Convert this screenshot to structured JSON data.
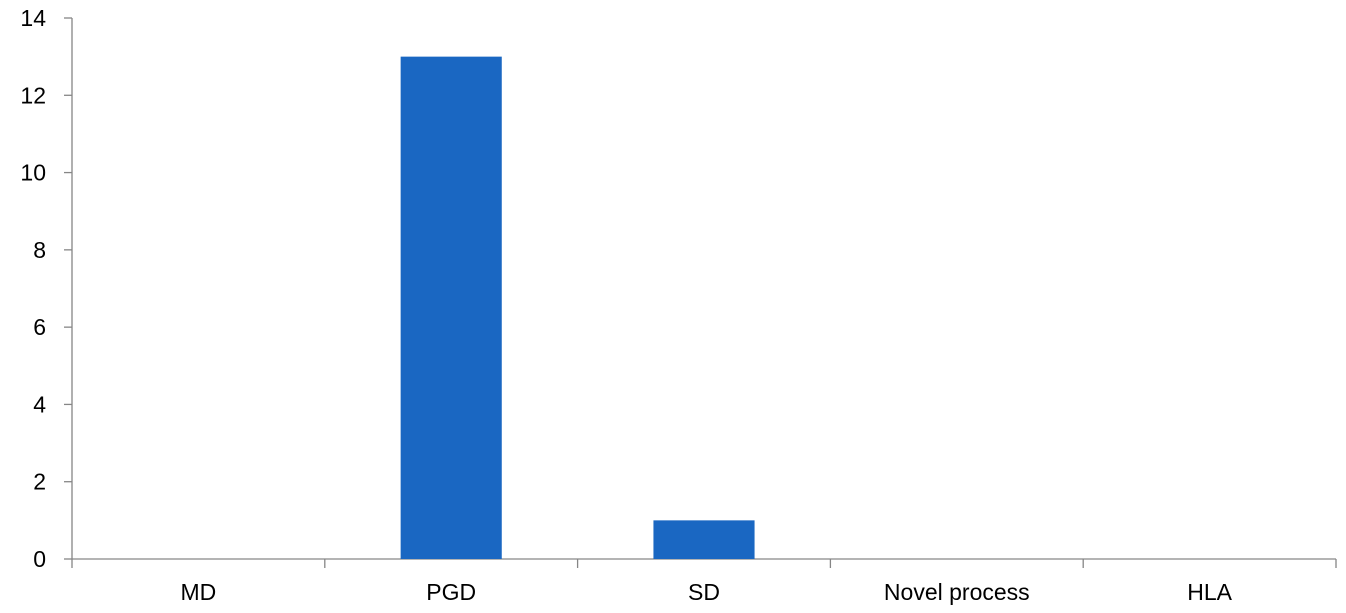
{
  "chart_data": {
    "type": "bar",
    "categories": [
      "MD",
      "PGD",
      "SD",
      "Novel process",
      "HLA"
    ],
    "values": [
      0,
      13,
      1,
      0,
      0
    ],
    "ylim": [
      0,
      14
    ],
    "yticks": [
      0,
      2,
      4,
      6,
      8,
      10,
      12,
      14
    ],
    "grid": false,
    "legend": "none",
    "colors": {
      "bar": "#1a67c2",
      "axis": "#868686",
      "text": "#000000"
    }
  }
}
